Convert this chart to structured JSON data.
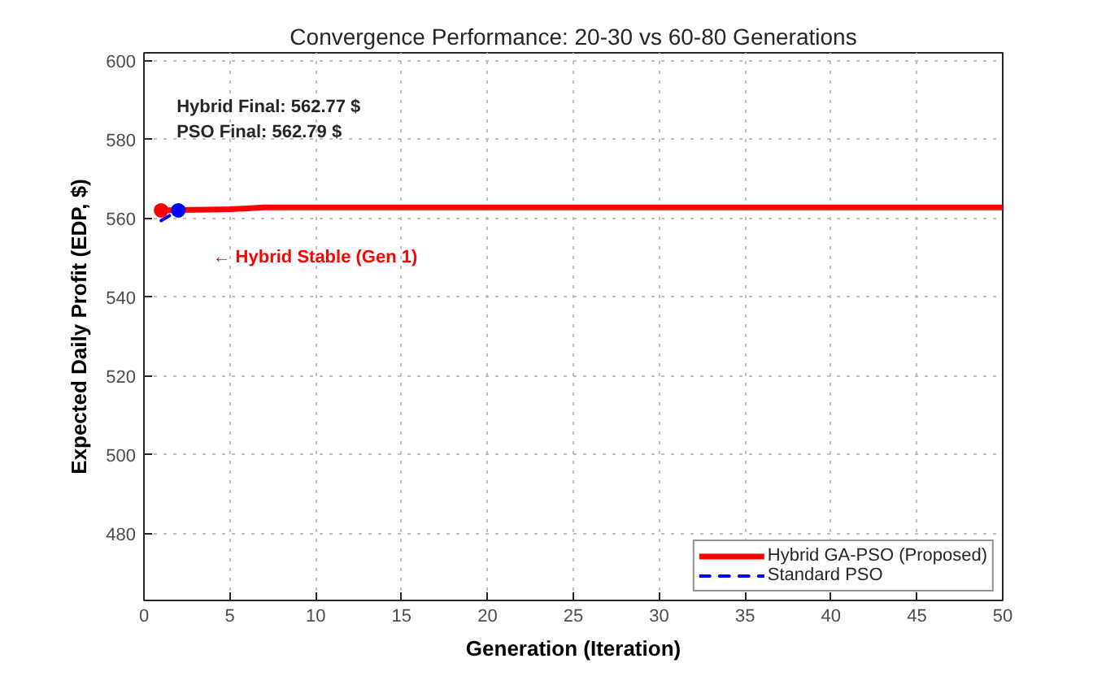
{
  "chart_data": {
    "type": "line",
    "title": "Convergence Performance: 20-30 vs 60-80 Generations",
    "xlabel": "Generation (Iteration)",
    "ylabel": "Expected Daily Profit (EDP, $)",
    "xlim": [
      0,
      50
    ],
    "ylim": [
      463,
      602
    ],
    "xticks": [
      0,
      5,
      10,
      15,
      20,
      25,
      30,
      35,
      40,
      45,
      50
    ],
    "yticks": [
      480,
      500,
      520,
      540,
      560,
      580,
      600
    ],
    "grid": true,
    "legend": "bottom right",
    "series": [
      {
        "name": "Hybrid GA-PSO (Proposed)",
        "color": "#ff0000",
        "line_style": "solid",
        "x": [
          1,
          2,
          5,
          6,
          7,
          50
        ],
        "values": [
          562.0,
          562.1,
          562.3,
          562.5,
          562.77,
          562.77
        ]
      },
      {
        "name": "Standard PSO",
        "color": "#0000ff",
        "line_style": "dashed",
        "x": [
          1,
          2
        ],
        "values": [
          559.4,
          562.0
        ]
      },
      {
        "type": "scatter",
        "color": "#ff0000",
        "marker": "circle",
        "x": [
          1
        ],
        "values": [
          562.0
        ]
      },
      {
        "type": "scatter",
        "color": "#0000ff",
        "marker": "circle",
        "x": [
          2
        ],
        "values": [
          562.0
        ]
      }
    ],
    "annotations": [
      "Hybrid Final: 562.77 $",
      "PSO Final: 562.79 $",
      "← Hybrid Stable (Gen 1)"
    ]
  }
}
